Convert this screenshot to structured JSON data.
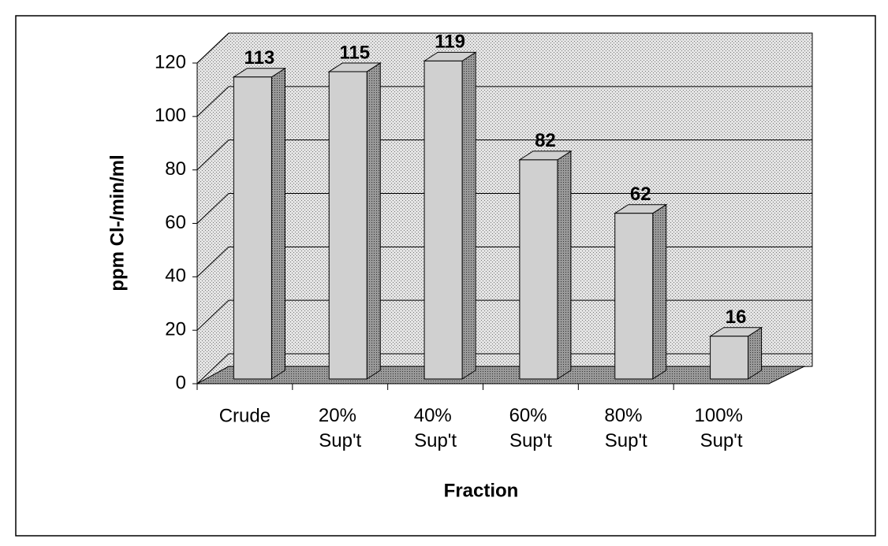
{
  "chart_data": {
    "type": "bar3d",
    "categories": [
      "Crude",
      "20% Sup't",
      "40% Sup't",
      "60% Sup't",
      "80% Sup't",
      "100% Sup't"
    ],
    "values": [
      113,
      115,
      119,
      82,
      62,
      16
    ],
    "ylim": [
      0,
      120
    ],
    "yticks": [
      0,
      20,
      40,
      60,
      80,
      100,
      120
    ],
    "grid": true,
    "y_label": "ppm Cl-/min/ml",
    "x_label": "Fraction",
    "color": "#d0d0d0"
  }
}
